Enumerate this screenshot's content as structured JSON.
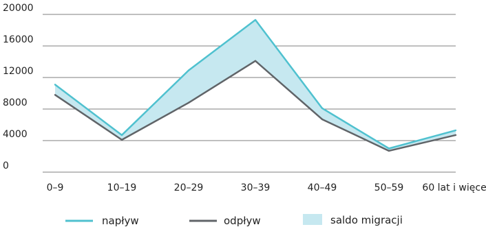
{
  "chart_data": {
    "type": "line",
    "title": "",
    "xlabel": "",
    "ylabel": "",
    "categories": [
      "0–9",
      "10–19",
      "20–29",
      "30–39",
      "40–49",
      "50–59",
      "60 lat i więcej"
    ],
    "ylim": [
      0,
      20000
    ],
    "yticks": [
      "0",
      "4000",
      "8000",
      "12000",
      "16000",
      "20000"
    ],
    "grid": "horizontal",
    "legend_position": "bottom",
    "series": [
      {
        "name": "napływ",
        "color": "#4FC1CF",
        "values": [
          11100,
          4700,
          12900,
          19300,
          8100,
          3000,
          5300
        ]
      },
      {
        "name": "odpływ",
        "color": "#606468",
        "values": [
          9800,
          4100,
          8800,
          14100,
          6700,
          2700,
          4700
        ]
      }
    ],
    "fill_between": {
      "name": "saldo migracji",
      "color": "#C6E8F0"
    }
  }
}
